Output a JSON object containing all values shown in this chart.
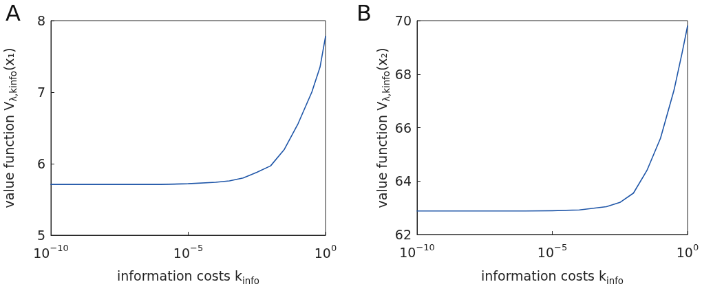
{
  "chart_data": [
    {
      "type": "line",
      "title": "A",
      "xlabel": "information costs k$_{info}$",
      "ylabel": "value function V$_{λ,k}$$_{info}$(x₁)",
      "log": "x",
      "grid": false,
      "marker": "none",
      "line_style": "solid",
      "x": [
        1e-10,
        1e-06,
        1e-05,
        0.0001,
        0.000316,
        0.001,
        0.00316,
        0.01,
        0.0316,
        0.1,
        0.316,
        0.631,
        1
      ],
      "series": [
        {
          "color": "#1f56a8",
          "values": [
            5.71,
            5.71,
            5.72,
            5.74,
            5.76,
            5.8,
            5.88,
            5.97,
            6.2,
            6.56,
            7.0,
            7.35,
            7.78
          ]
        }
      ],
      "xlim": [
        1e-10,
        1
      ],
      "xticks": [
        {
          "value": 1e-10,
          "label": "10$^{−10}$"
        },
        {
          "value": 1e-05,
          "label": "10$^{−5}$"
        },
        {
          "value": 1,
          "label": "10$^{0}$"
        }
      ],
      "ylim": [
        5,
        8
      ],
      "yticks": [
        5,
        6,
        7,
        8
      ]
    },
    {
      "type": "line",
      "title": "B",
      "xlabel": "information costs k$_{info}$",
      "ylabel": "value function V$_{λ,k}$$_{info}$(x₂)",
      "log": "x",
      "grid": false,
      "marker": "none",
      "line_style": "solid",
      "x": [
        1e-10,
        1e-06,
        1e-05,
        0.0001,
        0.001,
        0.00316,
        0.01,
        0.0316,
        0.1,
        0.316,
        0.631,
        1
      ],
      "series": [
        {
          "color": "#1f56a8",
          "values": [
            62.88,
            62.88,
            62.89,
            62.92,
            63.04,
            63.2,
            63.55,
            64.4,
            65.6,
            67.4,
            68.8,
            69.8
          ]
        }
      ],
      "xlim": [
        1e-10,
        1
      ],
      "xticks": [
        {
          "value": 1e-10,
          "label": "10$^{−10}$"
        },
        {
          "value": 1e-05,
          "label": "10$^{−5}$"
        },
        {
          "value": 1,
          "label": "10$^{0}$"
        }
      ],
      "ylim": [
        62,
        70
      ],
      "yticks": [
        62,
        64,
        66,
        68,
        70
      ]
    }
  ]
}
